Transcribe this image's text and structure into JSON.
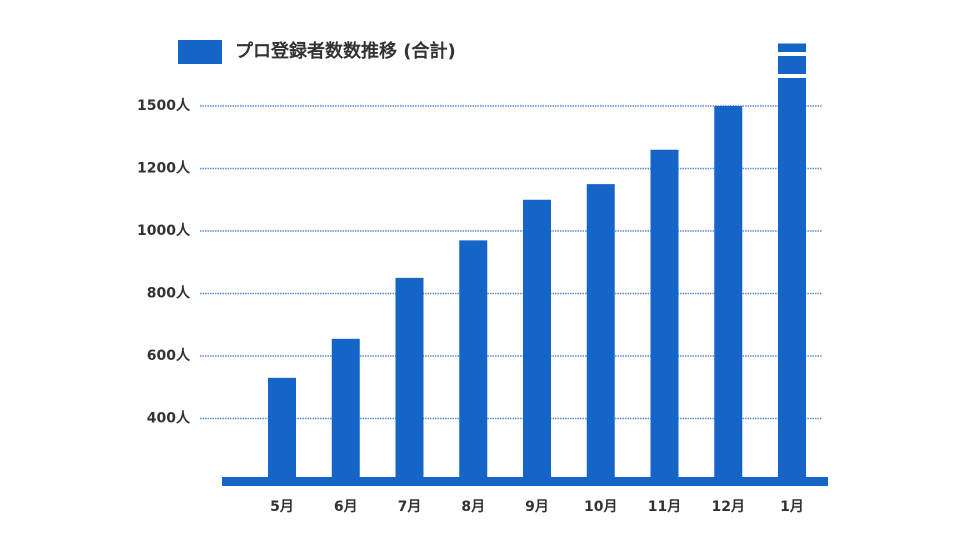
{
  "chart_data": {
    "type": "bar",
    "legend": "プロ登録者数数推移 (合計)",
    "categories": [
      "5月",
      "6月",
      "7月",
      "8月",
      "9月",
      "10月",
      "11月",
      "12月",
      "1月"
    ],
    "values": [
      530,
      655,
      850,
      970,
      1100,
      1150,
      1290,
      1500,
      1800
    ],
    "color": "#1565c8",
    "ylim": [
      200,
      1800
    ],
    "yticks": [
      {
        "value": 400,
        "label": "400人"
      },
      {
        "value": 600,
        "label": "600人"
      },
      {
        "value": 800,
        "label": "800人"
      },
      {
        "value": 1000,
        "label": "1000人"
      },
      {
        "value": 1200,
        "label": "1200人"
      },
      {
        "value": 1500,
        "label": "1500人"
      }
    ],
    "grid": true
  }
}
